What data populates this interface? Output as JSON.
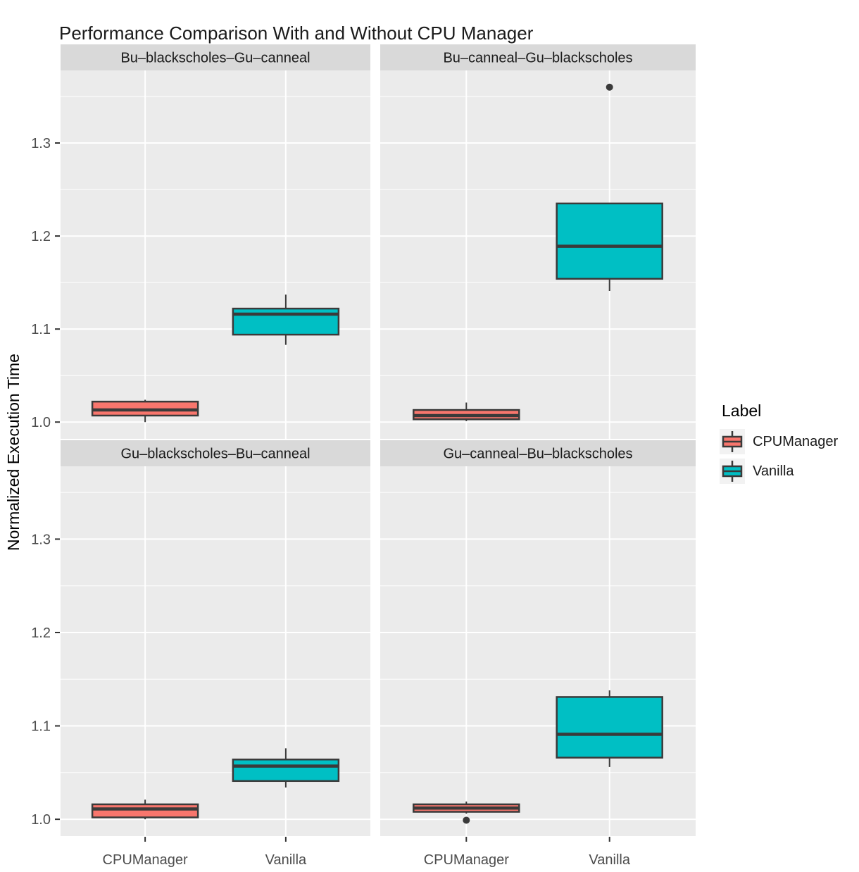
{
  "title": "Performance Comparison With and Without CPU Manager",
  "legend": {
    "title": "Label",
    "items": [
      {
        "label": "CPUManager",
        "color": "#F8766D"
      },
      {
        "label": "Vanilla",
        "color": "#00BFC4"
      }
    ]
  },
  "colors": {
    "cpumanager_fill": "#F8766D",
    "vanilla_fill": "#00BFC4",
    "box_border": "#3A3A3A",
    "panel_bg": "#EBEBEB",
    "strip_bg": "#D9D9D9",
    "grid": "#FFFFFF",
    "tick_label": "#4D4D4D",
    "strip_text": "#1A1A1A",
    "outlier": "#3A3A3A",
    "figure_bg": "#FFFFFF"
  },
  "chart_data": {
    "type": "boxplot",
    "title": "Performance Comparison With and Without CPU Manager",
    "xlabel": "",
    "ylabel": "Normalized Execution Time",
    "categories": [
      "CPUManager",
      "Vanilla"
    ],
    "y_ticks": [
      1.0,
      1.1,
      1.2,
      1.3
    ],
    "y_minor_ticks": [
      1.05,
      1.15,
      1.25,
      1.35
    ],
    "ylim": [
      0.982,
      1.378
    ],
    "grid": "white major+minor horizontal, major vertical at categories, on gray panel",
    "legend_position": "right",
    "facet_layout": "2x2 grid, strip label above each panel",
    "facets": [
      {
        "label": "Bu–blackscholes–Gu–canneal",
        "row": 0,
        "col": 0,
        "boxes": [
          {
            "category": "CPUManager",
            "series": "CPUManager",
            "whisker_low": 1.0,
            "q1": 1.007,
            "median": 1.013,
            "q3": 1.022,
            "whisker_high": 1.024,
            "outliers": []
          },
          {
            "category": "Vanilla",
            "series": "Vanilla",
            "whisker_low": 1.083,
            "q1": 1.094,
            "median": 1.116,
            "q3": 1.122,
            "whisker_high": 1.137,
            "outliers": []
          }
        ]
      },
      {
        "label": "Bu–canneal–Gu–blackscholes",
        "row": 0,
        "col": 1,
        "boxes": [
          {
            "category": "CPUManager",
            "series": "CPUManager",
            "whisker_low": 1.001,
            "q1": 1.003,
            "median": 1.007,
            "q3": 1.013,
            "whisker_high": 1.021,
            "outliers": []
          },
          {
            "category": "Vanilla",
            "series": "Vanilla",
            "whisker_low": 1.141,
            "q1": 1.154,
            "median": 1.189,
            "q3": 1.235,
            "whisker_high": 1.235,
            "outliers": [
              1.36
            ]
          }
        ]
      },
      {
        "label": "Gu–blackscholes–Bu–canneal",
        "row": 1,
        "col": 0,
        "boxes": [
          {
            "category": "CPUManager",
            "series": "CPUManager",
            "whisker_low": 1.0,
            "q1": 1.002,
            "median": 1.011,
            "q3": 1.016,
            "whisker_high": 1.021,
            "outliers": []
          },
          {
            "category": "Vanilla",
            "series": "Vanilla",
            "whisker_low": 1.034,
            "q1": 1.041,
            "median": 1.057,
            "q3": 1.064,
            "whisker_high": 1.076,
            "outliers": []
          }
        ]
      },
      {
        "label": "Gu–canneal–Bu–blackscholes",
        "row": 1,
        "col": 1,
        "boxes": [
          {
            "category": "CPUManager",
            "series": "CPUManager",
            "whisker_low": 1.006,
            "q1": 1.008,
            "median": 1.012,
            "q3": 1.016,
            "whisker_high": 1.019,
            "outliers": [
              0.999
            ]
          },
          {
            "category": "Vanilla",
            "series": "Vanilla",
            "whisker_low": 1.056,
            "q1": 1.066,
            "median": 1.091,
            "q3": 1.131,
            "whisker_high": 1.138,
            "outliers": []
          }
        ]
      }
    ]
  }
}
